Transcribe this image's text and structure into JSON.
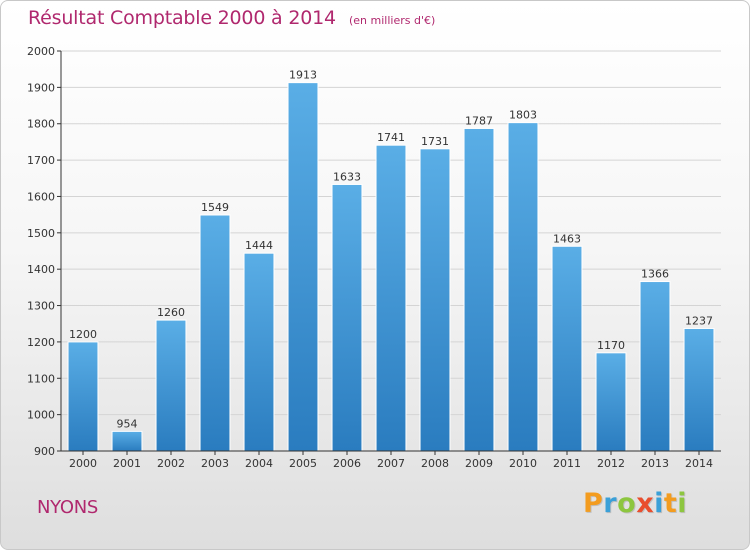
{
  "header": {
    "title": "Résultat Comptable 2000 à 2014",
    "subtitle": "(en milliers d'€)"
  },
  "footer": {
    "town": "NYONS",
    "brand_letters": [
      {
        "ch": "P",
        "color": "#f39c1f"
      },
      {
        "ch": "r",
        "color": "#3aa0d8"
      },
      {
        "ch": "o",
        "color": "#8dc63f"
      },
      {
        "ch": "x",
        "color": "#e94e2e"
      },
      {
        "ch": "i",
        "color": "#3aa0d8"
      },
      {
        "ch": "t",
        "color": "#f39c1f"
      },
      {
        "ch": "i",
        "color": "#8dc63f"
      }
    ]
  },
  "colors": {
    "accent": "#b0286e",
    "bar_top": "#5aaee6",
    "bar_bottom": "#2a7cbf"
  },
  "chart_data": {
    "type": "bar",
    "title": "Résultat Comptable 2000 à 2014",
    "subtitle": "(en milliers d'€)",
    "xlabel": "",
    "ylabel": "",
    "ylim": [
      900,
      2000
    ],
    "yticks": [
      900,
      1000,
      1100,
      1200,
      1300,
      1400,
      1500,
      1600,
      1700,
      1800,
      1900,
      2000
    ],
    "grid": true,
    "categories": [
      "2000",
      "2001",
      "2002",
      "2003",
      "2004",
      "2005",
      "2006",
      "2007",
      "2008",
      "2009",
      "2010",
      "2011",
      "2012",
      "2013",
      "2014"
    ],
    "values": [
      1200,
      954,
      1260,
      1549,
      1444,
      1913,
      1633,
      1741,
      1731,
      1787,
      1803,
      1463,
      1170,
      1366,
      1237
    ]
  }
}
